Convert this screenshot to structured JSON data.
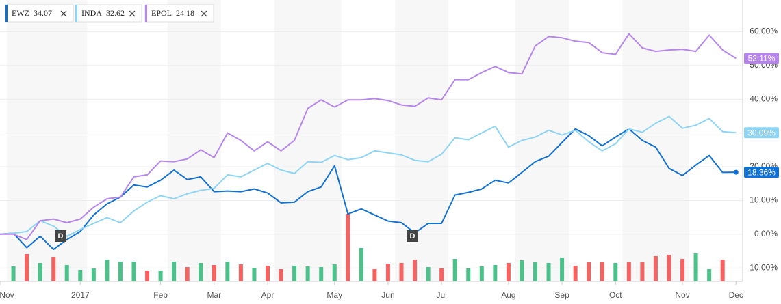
{
  "chart_data": {
    "type": "line",
    "categories": [
      "Nov",
      null,
      null,
      null,
      null,
      null,
      "2017",
      null,
      null,
      null,
      null,
      null,
      "Feb",
      null,
      null,
      null,
      "Mar",
      null,
      null,
      null,
      "Apr",
      null,
      null,
      null,
      null,
      "May",
      null,
      null,
      null,
      "Jun",
      null,
      null,
      null,
      "Jul",
      null,
      null,
      null,
      null,
      "Aug",
      null,
      null,
      null,
      "Sep",
      null,
      null,
      null,
      "Oct",
      null,
      null,
      null,
      null,
      "Nov",
      null,
      null,
      null,
      "Dec"
    ],
    "series": [
      {
        "name": "EWZ",
        "price": "34.07",
        "color": "#1070d4",
        "end_label": "18.36%",
        "values": [
          0,
          0.3,
          -4,
          -0.6,
          -4.5,
          -1.6,
          0.8,
          5.7,
          9,
          11,
          14.6,
          14,
          16,
          19,
          16.2,
          17,
          12.6,
          12.8,
          12.6,
          13.4,
          12.2,
          9.3,
          9.5,
          12.6,
          14,
          20.3,
          6,
          7.5,
          5.7,
          3.9,
          3.4,
          0.4,
          3.2,
          3.2,
          11.6,
          12.4,
          13.4,
          16,
          15.2,
          18.3,
          21.5,
          23.1,
          27.2,
          31.2,
          29.2,
          26.2,
          28.8,
          31.2,
          27.8,
          25.8,
          19.5,
          17.4,
          20.5,
          23.3,
          18.3,
          18.36
        ]
      },
      {
        "name": "INDA",
        "price": "32.62",
        "color": "#8ed4f5",
        "end_label": "30.09%",
        "values": [
          0,
          0.3,
          0.8,
          4,
          2.4,
          -0.6,
          1.4,
          3.2,
          4.9,
          3.4,
          6.9,
          9.5,
          11.4,
          10.5,
          12,
          13,
          13.6,
          17.6,
          17,
          19,
          21,
          19,
          18,
          21.5,
          21.3,
          23.3,
          22.1,
          22.7,
          24.7,
          24.1,
          23.5,
          21.9,
          21.5,
          23.7,
          28.6,
          28,
          30,
          32,
          25.8,
          27.8,
          28.8,
          30.8,
          29.4,
          30.8,
          27.4,
          24.7,
          26.8,
          31.2,
          30.2,
          32.9,
          34.9,
          31.4,
          32.3,
          34.3,
          30.4,
          30.09
        ]
      },
      {
        "name": "EPOL",
        "price": "24.18",
        "color": "#b685ec",
        "end_label": "52.11%",
        "values": [
          0,
          0,
          -1.6,
          4,
          4.5,
          3.4,
          4.5,
          8,
          10.5,
          11,
          17,
          17.6,
          21.7,
          21.5,
          22.3,
          25,
          22.7,
          30,
          27.8,
          24.7,
          27.4,
          24.7,
          27.8,
          37.3,
          39.8,
          37.7,
          39.8,
          39.8,
          40.2,
          39.6,
          38.3,
          37.9,
          40.4,
          39.8,
          45.8,
          45.8,
          47.9,
          49.7,
          47.9,
          47.5,
          55.8,
          58.6,
          58.2,
          57.2,
          56.8,
          53.8,
          53.3,
          59.4,
          55.2,
          54.2,
          54.6,
          54.8,
          54.2,
          59,
          54.6,
          52.11
        ]
      }
    ],
    "volume": {
      "vlim": [
        0,
        140
      ],
      "values": [
        null,
        22,
        40,
        27,
        36,
        24,
        17,
        19,
        32,
        29,
        29,
        16,
        16,
        29,
        21,
        27,
        24,
        29,
        25,
        20,
        23,
        18,
        23,
        22,
        21,
        25,
        99,
        49,
        18,
        26,
        27,
        32,
        21,
        19,
        33,
        19,
        22,
        24,
        27,
        31,
        28,
        27,
        35,
        23,
        28,
        28,
        27,
        28,
        28,
        37,
        39,
        33,
        41,
        18,
        32,
        null
      ],
      "colors": [
        null,
        "#4cc18a",
        "#f46262",
        "#4cc18a",
        "#f46262",
        "#4cc18a",
        "#4cc18a",
        "#4cc18a",
        "#4cc18a",
        "#4cc18a",
        "#4cc18a",
        "#f46262",
        "#4cc18a",
        "#4cc18a",
        "#f46262",
        "#4cc18a",
        "#f46262",
        "#4cc18a",
        "#f46262",
        "#4cc18a",
        "#f46262",
        "#f46262",
        "#4cc18a",
        "#4cc18a",
        "#4cc18a",
        "#4cc18a",
        "#f46262",
        "#4cc18a",
        "#f46262",
        "#f46262",
        "#f46262",
        "#f46262",
        "#4cc18a",
        "#f46262",
        "#4cc18a",
        "#4cc18a",
        "#4cc18a",
        "#4cc18a",
        "#f46262",
        "#4cc18a",
        "#4cc18a",
        "#4cc18a",
        "#4cc18a",
        "#f46262",
        "#f46262",
        "#f46262",
        "#4cc18a",
        "#f46262",
        "#f46262",
        "#f46262",
        "#f46262",
        "#f46262",
        "#4cc18a",
        "#4cc18a",
        "#f46262",
        null
      ]
    },
    "annotations": [
      "D",
      "D"
    ],
    "ylim": [
      -14,
      69.4
    ],
    "yticks": [
      {
        "value": -10,
        "label": "-10.00%"
      },
      {
        "value": 0,
        "label": "0.00%"
      },
      {
        "value": 10,
        "label": "10.00%"
      },
      {
        "value": 20,
        "label": "20.00%"
      },
      {
        "value": 30,
        "label": "30.00%"
      },
      {
        "value": 40,
        "label": "40.00%"
      },
      {
        "value": 50,
        "label": "50.00%"
      },
      {
        "value": 60,
        "label": "60.00%"
      }
    ],
    "grid": true
  }
}
